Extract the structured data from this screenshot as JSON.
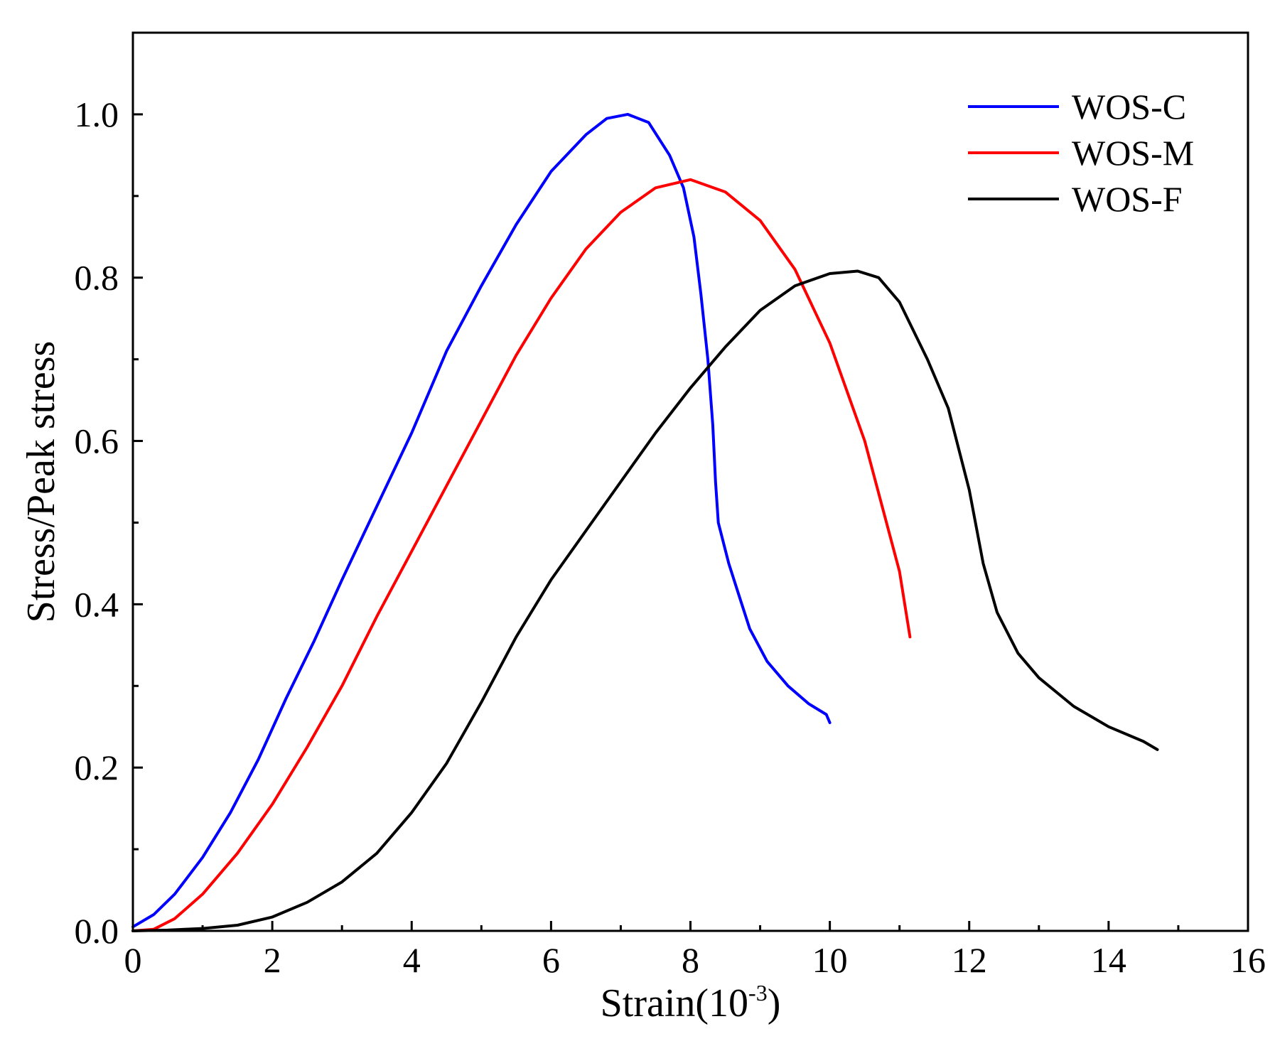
{
  "chart_data": {
    "type": "line",
    "title": "",
    "xlabel": "Strain(10-3)",
    "xlabel_parts": {
      "base": "Strain(10",
      "sup": "-3",
      "close": ")"
    },
    "ylabel": "Stress/Peak stress",
    "xlim": [
      0,
      16
    ],
    "ylim": [
      0,
      1.1
    ],
    "x_ticks": [
      0,
      2,
      4,
      6,
      8,
      10,
      12,
      14,
      16
    ],
    "x_tick_labels": [
      "0",
      "2",
      "4",
      "6",
      "8",
      "10",
      "12",
      "14",
      "16"
    ],
    "y_ticks": [
      0.0,
      0.2,
      0.4,
      0.6,
      0.8,
      1.0
    ],
    "y_tick_labels": [
      "0.0",
      "0.2",
      "0.4",
      "0.6",
      "0.8",
      "1.0"
    ],
    "grid": false,
    "legend_position": "top-right",
    "series": [
      {
        "name": "WOS-C",
        "color": "#0000ff",
        "points": [
          [
            0,
            0.005
          ],
          [
            0.3,
            0.02
          ],
          [
            0.6,
            0.045
          ],
          [
            1.0,
            0.09
          ],
          [
            1.4,
            0.145
          ],
          [
            1.8,
            0.21
          ],
          [
            2.2,
            0.285
          ],
          [
            2.6,
            0.355
          ],
          [
            3.0,
            0.43
          ],
          [
            3.5,
            0.52
          ],
          [
            4.0,
            0.61
          ],
          [
            4.5,
            0.71
          ],
          [
            5.0,
            0.79
          ],
          [
            5.5,
            0.865
          ],
          [
            6.0,
            0.93
          ],
          [
            6.5,
            0.975
          ],
          [
            6.8,
            0.995
          ],
          [
            7.1,
            1.0
          ],
          [
            7.4,
            0.99
          ],
          [
            7.7,
            0.95
          ],
          [
            7.9,
            0.91
          ],
          [
            8.05,
            0.85
          ],
          [
            8.15,
            0.78
          ],
          [
            8.25,
            0.7
          ],
          [
            8.32,
            0.62
          ],
          [
            8.36,
            0.55
          ],
          [
            8.4,
            0.5
          ],
          [
            8.55,
            0.45
          ],
          [
            8.7,
            0.41
          ],
          [
            8.85,
            0.37
          ],
          [
            9.1,
            0.33
          ],
          [
            9.4,
            0.3
          ],
          [
            9.7,
            0.278
          ],
          [
            9.95,
            0.265
          ],
          [
            10.0,
            0.255
          ]
        ]
      },
      {
        "name": "WOS-M",
        "color": "#ff0000",
        "points": [
          [
            0,
            0.0
          ],
          [
            0.3,
            0.002
          ],
          [
            0.6,
            0.015
          ],
          [
            1.0,
            0.045
          ],
          [
            1.5,
            0.095
          ],
          [
            2.0,
            0.155
          ],
          [
            2.5,
            0.225
          ],
          [
            3.0,
            0.3
          ],
          [
            3.5,
            0.385
          ],
          [
            4.0,
            0.465
          ],
          [
            4.5,
            0.545
          ],
          [
            5.0,
            0.625
          ],
          [
            5.5,
            0.705
          ],
          [
            6.0,
            0.775
          ],
          [
            6.5,
            0.835
          ],
          [
            7.0,
            0.88
          ],
          [
            7.5,
            0.91
          ],
          [
            8.0,
            0.92
          ],
          [
            8.5,
            0.905
          ],
          [
            9.0,
            0.87
          ],
          [
            9.5,
            0.81
          ],
          [
            10.0,
            0.72
          ],
          [
            10.5,
            0.6
          ],
          [
            11.0,
            0.44
          ],
          [
            11.15,
            0.36
          ]
        ]
      },
      {
        "name": "WOS-F",
        "color": "#000000",
        "points": [
          [
            0,
            0.0
          ],
          [
            0.5,
            0.001
          ],
          [
            1.0,
            0.003
          ],
          [
            1.5,
            0.007
          ],
          [
            2.0,
            0.017
          ],
          [
            2.5,
            0.035
          ],
          [
            3.0,
            0.06
          ],
          [
            3.5,
            0.095
          ],
          [
            4.0,
            0.145
          ],
          [
            4.5,
            0.205
          ],
          [
            5.0,
            0.28
          ],
          [
            5.5,
            0.36
          ],
          [
            6.0,
            0.43
          ],
          [
            6.5,
            0.49
          ],
          [
            7.0,
            0.55
          ],
          [
            7.5,
            0.61
          ],
          [
            8.0,
            0.665
          ],
          [
            8.5,
            0.715
          ],
          [
            9.0,
            0.76
          ],
          [
            9.5,
            0.79
          ],
          [
            10.0,
            0.805
          ],
          [
            10.4,
            0.808
          ],
          [
            10.7,
            0.8
          ],
          [
            11.0,
            0.77
          ],
          [
            11.4,
            0.7
          ],
          [
            11.7,
            0.64
          ],
          [
            12.0,
            0.54
          ],
          [
            12.2,
            0.45
          ],
          [
            12.4,
            0.39
          ],
          [
            12.7,
            0.34
          ],
          [
            13.0,
            0.31
          ],
          [
            13.5,
            0.275
          ],
          [
            14.0,
            0.25
          ],
          [
            14.5,
            0.232
          ],
          [
            14.7,
            0.222
          ]
        ]
      }
    ]
  }
}
